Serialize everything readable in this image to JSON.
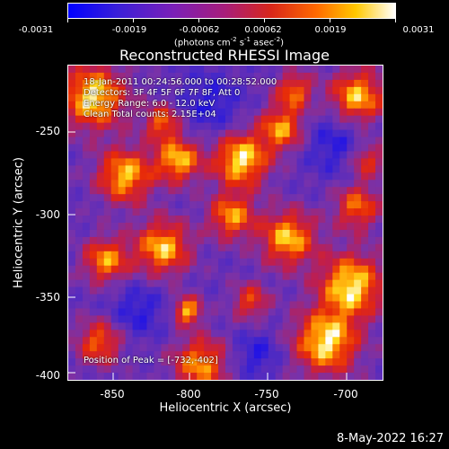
{
  "colorbar": {
    "tick_labels": [
      "-0.0031",
      "-0.0019",
      "-0.00062",
      "0.00062",
      "0.0019",
      "0.0031"
    ],
    "units_prefix": "(photons cm",
    "units_exp1": "-2",
    "units_mid": " s",
    "units_exp2": "-1",
    "units_mid2": " asec",
    "units_exp3": "-2",
    "units_suffix": ")"
  },
  "title": "Reconstructed RHESSI Image",
  "annotation": {
    "time": "18-Jan-2011 00:24:56.000 to 00:28:52.000",
    "detectors": "Detectors: 3F 4F 5F 6F 7F 8F, Att 0",
    "energy": "Energy Range: 6.0 - 12.0 keV",
    "method": "Clean     Total counts: 2.15E+04",
    "peak": "Position of Peak = [-732,-402]"
  },
  "axes": {
    "ylabel": "Heliocentric Y (arcsec)",
    "xlabel": "Heliocentric X (arcsec)",
    "yticks": [
      "-250",
      "-300",
      "-350",
      "-400"
    ],
    "xticks": [
      "-850",
      "-800",
      "-750",
      "-700"
    ]
  },
  "plot_date": "8-May-2022 16:27"
}
